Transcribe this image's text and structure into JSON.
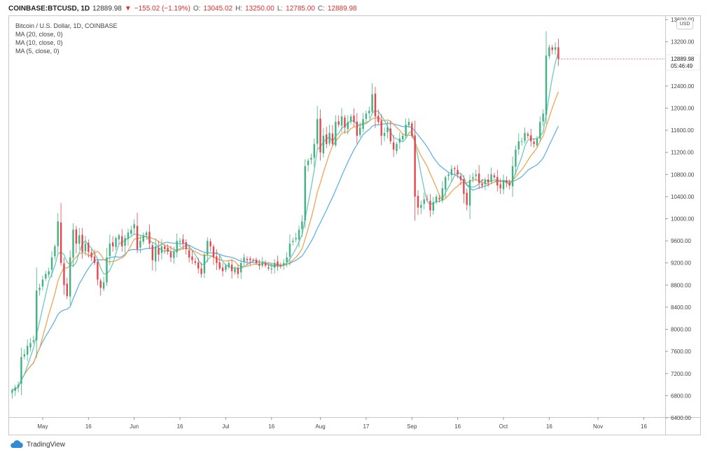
{
  "header": {
    "symbol": "COINBASE:BTCUSD, 1D",
    "last": "12889.98",
    "change": "−155.02 (−1.19%)",
    "open_label": "O:",
    "open": "13045.02",
    "high_label": "H:",
    "high": "13250.00",
    "low_label": "L:",
    "low": "12785.00",
    "close_label": "C:",
    "close": "12889.98"
  },
  "legend": {
    "title": "Bitcoin / U.S. Dollar, 1D, COINBASE",
    "ma1": "MA (20, close, 0)",
    "ma2": "MA (10, close, 0)",
    "ma3": "MA (5, close, 0)"
  },
  "currency_button": "USD",
  "price_marker": {
    "price": "12889.98",
    "countdown": "05:46:49"
  },
  "brand": "TradingView",
  "colors": {
    "up": "#3fb27f",
    "down": "#e8444d",
    "ma20": "#5aaee8",
    "ma10": "#f0a04b",
    "ma5": "#62c9b7"
  },
  "chart_data": {
    "type": "candlestick",
    "ylim": [
      6400,
      13600
    ],
    "y_ticks": [
      13600,
      13200,
      12800,
      12400,
      12000,
      11600,
      11200,
      10800,
      10400,
      10000,
      9600,
      9200,
      8800,
      8400,
      8000,
      7600,
      7200,
      6800,
      6400
    ],
    "y_tick_labels": [
      "13600.00",
      "13200.00",
      "12800.00",
      "12400.00",
      "12000.00",
      "11600.00",
      "11200.00",
      "10800.00",
      "10400.00",
      "10000.00",
      "9600.00",
      "9200.00",
      "8800.00",
      "8400.00",
      "8000.00",
      "7600.00",
      "7200.00",
      "6800.00",
      "6400.00"
    ],
    "x_ticks": [
      {
        "day": 10,
        "label": "May"
      },
      {
        "day": 25,
        "label": "16"
      },
      {
        "day": 40,
        "label": "Jun"
      },
      {
        "day": 55,
        "label": "16"
      },
      {
        "day": 70,
        "label": "Jul"
      },
      {
        "day": 85,
        "label": "16"
      },
      {
        "day": 101,
        "label": "Aug"
      },
      {
        "day": 116,
        "label": "17"
      },
      {
        "day": 131,
        "label": "Sep"
      },
      {
        "day": 146,
        "label": "16"
      },
      {
        "day": 161,
        "label": "Oct"
      },
      {
        "day": 176,
        "label": "16"
      },
      {
        "day": 192,
        "label": "Nov"
      },
      {
        "day": 207,
        "label": "16"
      }
    ],
    "x_domain": [
      -1,
      214
    ],
    "grid": false,
    "closes": [
      6900,
      6950,
      7000,
      7500,
      7550,
      7700,
      7750,
      7800,
      8700,
      8750,
      8900,
      9000,
      9050,
      9300,
      9500,
      9950,
      9200,
      8800,
      8600,
      9300,
      9800,
      9550,
      9700,
      9400,
      9550,
      9400,
      9300,
      9200,
      8900,
      8750,
      8850,
      9300,
      9550,
      9500,
      9650,
      9700,
      9500,
      9650,
      9750,
      9800,
      9900,
      9450,
      9600,
      9700,
      9750,
      9550,
      9250,
      9500,
      9350,
      9500,
      9450,
      9400,
      9300,
      9400,
      9600,
      9600,
      9550,
      9450,
      9300,
      9250,
      9200,
      9100,
      9000,
      9350,
      9600,
      9500,
      9300,
      9200,
      9100,
      9050,
      9150,
      9200,
      9050,
      9100,
      9000,
      9200,
      9300,
      9250,
      9250,
      9250,
      9200,
      9150,
      9200,
      9150,
      9100,
      9100,
      9200,
      9150,
      9150,
      9200,
      9300,
      9550,
      9600,
      9650,
      9800,
      9950,
      10950,
      11050,
      11100,
      11350,
      11800,
      11200,
      11500,
      11350,
      11550,
      11350,
      11750,
      11700,
      11850,
      11650,
      11750,
      11850,
      11750,
      11500,
      11650,
      11800,
      11900,
      11950,
      12250,
      11850,
      11750,
      11500,
      11550,
      11650,
      11400,
      11250,
      11350,
      11450,
      11500,
      11700,
      11750,
      11500,
      10400,
      10200,
      10250,
      10350,
      10350,
      10150,
      10300,
      10400,
      10350,
      10550,
      10750,
      10800,
      10900,
      10900,
      10800,
      10700,
      10450,
      10250,
      10700,
      10750,
      10800,
      10650,
      10600,
      10700,
      10650,
      10800,
      10750,
      10600,
      10550,
      10700,
      10650,
      10600,
      10950,
      11250,
      11400,
      11400,
      11550,
      11500,
      11400,
      11350,
      11450,
      11750,
      11900,
      12950,
      13100,
      13050,
      13100,
      12889.98
    ],
    "ma_series": [
      {
        "name": "MA (20, close, 0)",
        "period": 20,
        "color": "#5aaee8"
      },
      {
        "name": "MA (10, close, 0)",
        "period": 10,
        "color": "#f0a04b"
      },
      {
        "name": "MA (5, close, 0)",
        "period": 5,
        "color": "#62c9b7"
      }
    ]
  }
}
